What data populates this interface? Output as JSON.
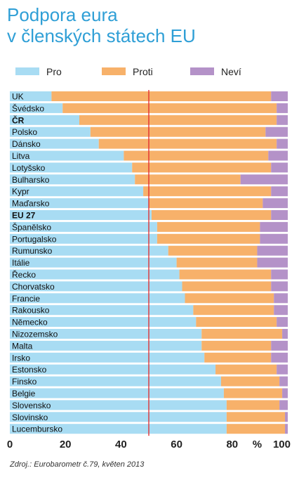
{
  "title_line1": "Podpora eura",
  "title_line2": "v členských státech EU",
  "source": "Zdroj.: Eurobarometr č.79, květen 2013",
  "colors": {
    "pro": "#a8dcf3",
    "proti": "#f7b16a",
    "nevi": "#b492c8",
    "refline": "#e0262b"
  },
  "chart_data": {
    "type": "bar",
    "orientation": "horizontal",
    "stacked": true,
    "categories": [
      "UK",
      "Švédsko",
      "ČR",
      "Polsko",
      "Dánsko",
      "Litva",
      "Lotyšsko",
      "Bulharsko",
      "Kypr",
      "Maďarsko",
      "EU 27",
      "Španělsko",
      "Portugalsko",
      "Rumunsko",
      "Itálie",
      "Řecko",
      "Chorvatsko",
      "Francie",
      "Rakousko",
      "Německo",
      "Nizozemsko",
      "Malta",
      "Irsko",
      "Estonsko",
      "Finsko",
      "Belgie",
      "Slovensko",
      "Slovinsko",
      "Lucembursko"
    ],
    "bold_categories": [
      "ČR",
      "EU 27"
    ],
    "series": [
      {
        "name": "Pro",
        "values": [
          15,
          19,
          25,
          29,
          32,
          41,
          44,
          45,
          48,
          50,
          51,
          53,
          53,
          57,
          60,
          61,
          62,
          63,
          66,
          67,
          69,
          69,
          70,
          74,
          76,
          77,
          78,
          78,
          78
        ]
      },
      {
        "name": "Proti",
        "values": [
          79,
          77,
          71,
          63,
          64,
          52,
          50,
          38,
          46,
          41,
          43,
          37,
          37,
          32,
          29,
          33,
          32,
          32,
          29,
          29,
          29,
          25,
          24,
          22,
          21,
          21,
          19,
          21,
          21
        ]
      },
      {
        "name": "Neví",
        "values": [
          6,
          4,
          4,
          8,
          4,
          7,
          6,
          17,
          6,
          9,
          6,
          10,
          10,
          11,
          11,
          6,
          6,
          5,
          5,
          4,
          2,
          6,
          6,
          4,
          3,
          2,
          3,
          1,
          1
        ]
      }
    ],
    "xlim": [
      0,
      100
    ],
    "xticks": [
      "0",
      "20",
      "40",
      "60",
      "80",
      "100"
    ],
    "xunit": "%",
    "reference_line": 50,
    "legend_position": "top"
  }
}
